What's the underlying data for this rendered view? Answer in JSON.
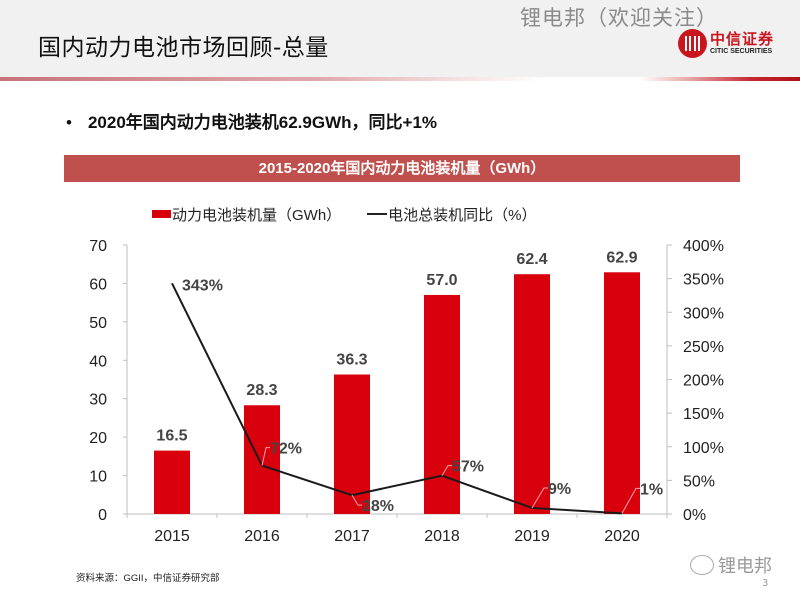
{
  "header": {
    "title": "国内动力电池市场回顾-总量",
    "watermark": "锂电邦（欢迎关注）",
    "logo_cn": "中信证券",
    "logo_en": "CITIC SECURITIES"
  },
  "bullet": {
    "text": "2020年国内动力电池装机62.9GWh，同比+1%",
    "marker": "•"
  },
  "chart_banner": "2015-2020年国内动力电池装机量（GWh）",
  "colors": {
    "bar": "#d9000d",
    "line": "#1a1a1a",
    "banner": "#c0504d",
    "accent": "#c8151e"
  },
  "chart_data": {
    "type": "bar",
    "title": "2015-2020年国内动力电池装机量（GWh）",
    "categories": [
      "2015",
      "2016",
      "2017",
      "2018",
      "2019",
      "2020"
    ],
    "series": [
      {
        "name": "动力电池装机量（GWh）",
        "type": "bar",
        "axis": "left",
        "values": [
          16.5,
          28.3,
          36.3,
          57.0,
          62.4,
          62.9
        ],
        "labels": [
          "16.5",
          "28.3",
          "36.3",
          "57.0",
          "62.4",
          "62.9"
        ]
      },
      {
        "name": "电池总装机同比（%）",
        "type": "line",
        "axis": "right",
        "values": [
          343,
          72,
          28,
          57,
          9,
          1
        ],
        "labels": [
          "343%",
          "72%",
          "28%",
          "57%",
          "9%",
          "1%"
        ]
      }
    ],
    "y_left": {
      "min": 0,
      "max": 70,
      "ticks": [
        "0",
        "10",
        "20",
        "30",
        "40",
        "50",
        "60",
        "70"
      ],
      "tick_values": [
        0,
        10,
        20,
        30,
        40,
        50,
        60,
        70
      ]
    },
    "y_right": {
      "min": 0,
      "max": 400,
      "ticks": [
        "0%",
        "50%",
        "100%",
        "150%",
        "200%",
        "250%",
        "300%",
        "350%",
        "400%"
      ],
      "tick_values": [
        0,
        50,
        100,
        150,
        200,
        250,
        300,
        350,
        400
      ]
    },
    "xlabel": "",
    "ylabel": "",
    "grid": false,
    "legend_position": "top"
  },
  "legend": {
    "bar_label": "动力电池装机量（GWh）",
    "line_label": "电池总装机同比（%）"
  },
  "footer": {
    "source": "资料来源：GGII，中信证券研究部",
    "watermark": "锂电邦",
    "page_number": "3"
  }
}
